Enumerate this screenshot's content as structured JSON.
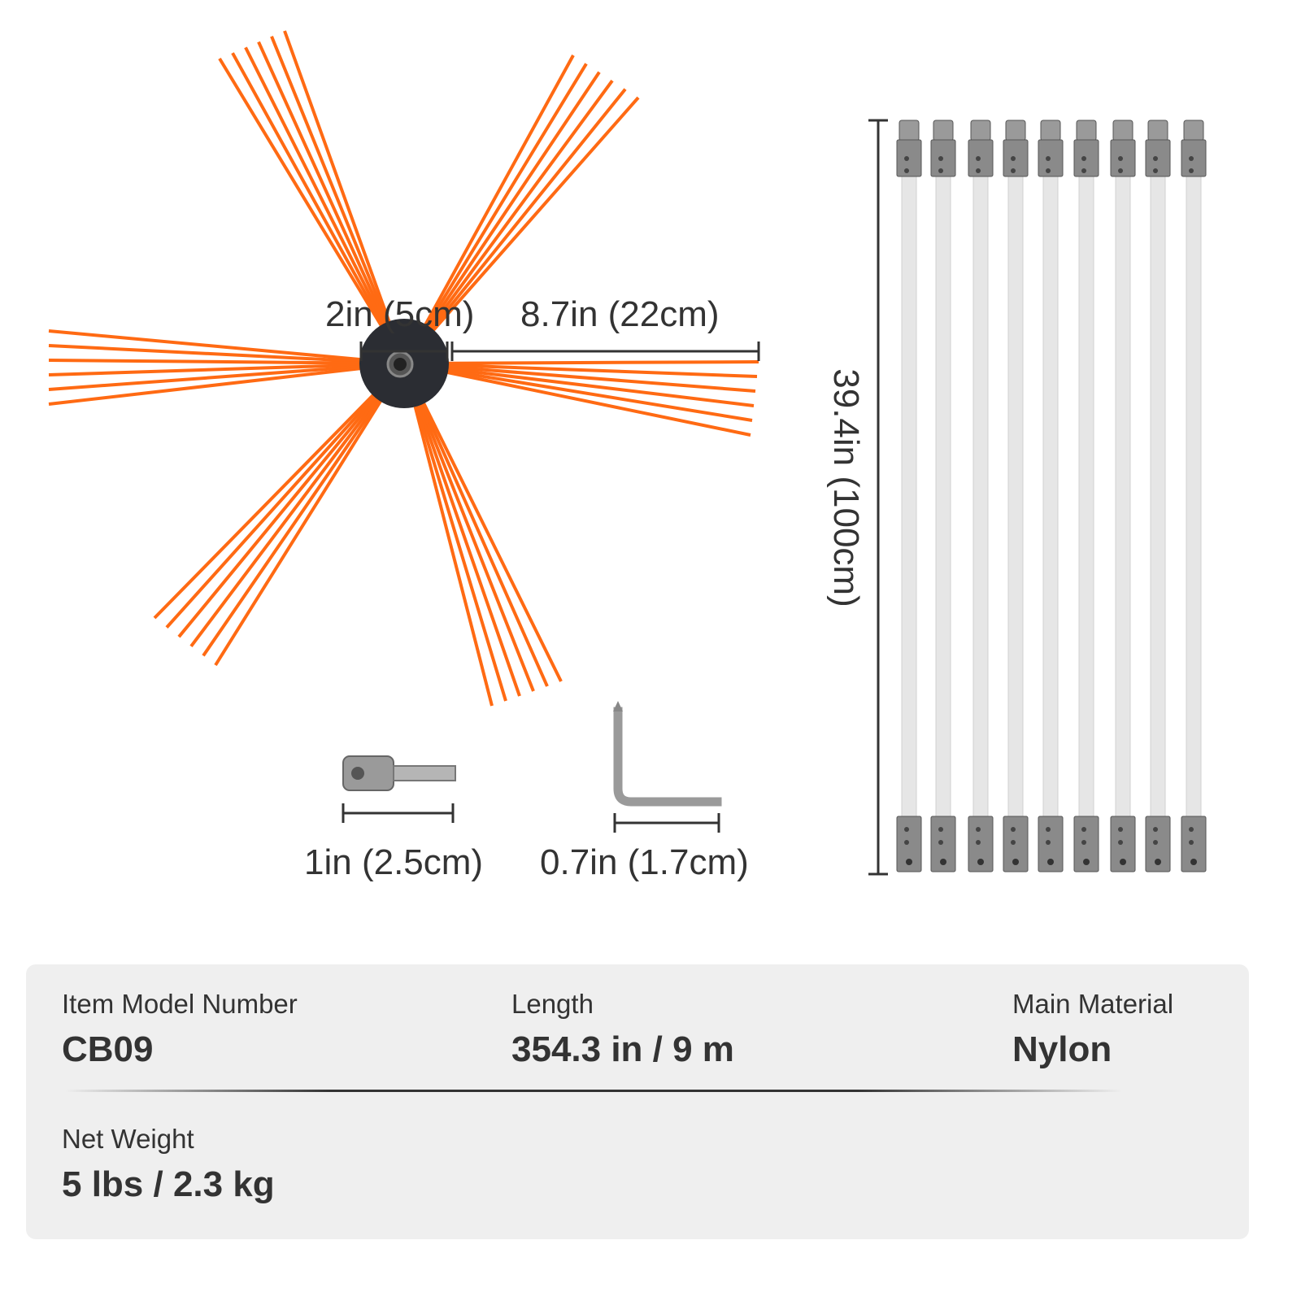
{
  "colors": {
    "bristle": "#ff6a13",
    "hub": "#2b2d33",
    "rod": "#e6e6e6",
    "metal": "#8a8a8a",
    "panel": "#efefef",
    "text": "#333333"
  },
  "dimensions": {
    "hub": "2in (5cm)",
    "bristle": "8.7in (22cm)",
    "rod": "39.4in (100cm)",
    "adapter": "1in (2.5cm)",
    "wrench": "0.7in (1.7cm)"
  },
  "rod_count": 9,
  "specs": [
    {
      "label": "Item Model Number",
      "value": "CB09"
    },
    {
      "label": "Length",
      "value": "354.3 in / 9 m"
    },
    {
      "label": "Main Material",
      "value": "Nylon"
    },
    {
      "label": "Net Weight",
      "value": "5 lbs / 2.3 kg"
    }
  ]
}
